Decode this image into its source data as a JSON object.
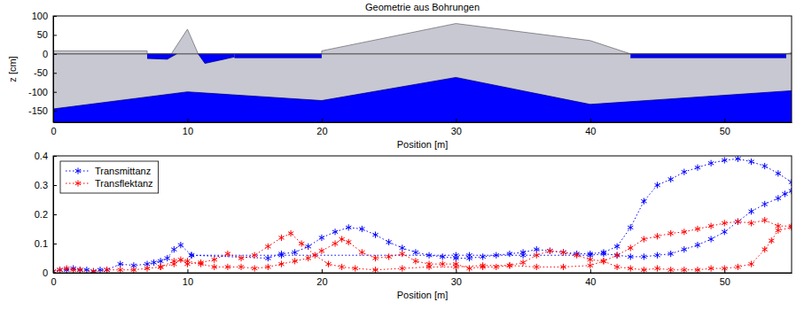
{
  "chart_data": [
    {
      "type": "area",
      "title": "Geometrie aus Bohrungen",
      "x_label": "Position [m]",
      "y_label": "z [cm]",
      "xlim": [
        0,
        55
      ],
      "ylim": [
        -180,
        100
      ],
      "xticks": [
        0,
        10,
        20,
        30,
        40,
        50
      ],
      "yticks": [
        -150,
        -100,
        -50,
        0,
        50,
        100
      ],
      "grid": false,
      "series": [
        {
          "type": "area",
          "color": "#c8c8d2",
          "x": [
            0,
            7,
            7,
            8.8,
            10,
            10.8,
            20,
            20,
            30,
            40,
            43,
            54.6,
            55
          ],
          "values": [
            8,
            8,
            0,
            0,
            65,
            0,
            0,
            8,
            80,
            35,
            0,
            0,
            3
          ]
        },
        {
          "type": "area",
          "color": "#0000ff",
          "x": [
            7,
            8.5,
            9.2
          ],
          "values": [
            -12,
            -14,
            0
          ],
          "base": [
            0,
            0,
            0
          ]
        },
        {
          "type": "area",
          "color": "#0000ff",
          "x": [
            10.8,
            11.3,
            13.5
          ],
          "values": [
            0,
            -25,
            -8
          ],
          "base": [
            0,
            0,
            0
          ]
        },
        {
          "type": "area",
          "color": "#0000ff",
          "x": [
            13.5,
            20
          ],
          "values": [
            -10,
            -10
          ],
          "base": [
            0,
            0
          ]
        },
        {
          "type": "area",
          "color": "#0000ff",
          "x": [
            43,
            54.6
          ],
          "values": [
            -10,
            -10
          ],
          "base": [
            0,
            0
          ]
        },
        {
          "type": "area",
          "color": "#0000ff",
          "x": [
            0,
            10,
            20,
            30,
            40,
            55
          ],
          "values": [
            -145,
            -100,
            -123,
            -62,
            -133,
            -97
          ]
        },
        {
          "type": "line",
          "color": "#404040",
          "line_style": "solid",
          "x": [
            0,
            55
          ],
          "values": [
            0,
            0
          ]
        }
      ]
    },
    {
      "type": "line",
      "x_label": "Position [m]",
      "xlim": [
        0,
        55
      ],
      "ylim": [
        0,
        0.4
      ],
      "xticks": [
        0,
        10,
        20,
        30,
        40,
        50
      ],
      "yticks": [
        0,
        0.1,
        0.2,
        0.3,
        0.4
      ],
      "grid": false,
      "legend": "upper left",
      "series": [
        {
          "name": "Transmittanz",
          "color": "#0000ff",
          "marker": "asterisk",
          "line_style": "dotted",
          "x": [
            0,
            0.5,
            1,
            1.5,
            2,
            2.5,
            3,
            3.5,
            4,
            5,
            6,
            7,
            7.5,
            8,
            8.5,
            9,
            9.5,
            10.3,
            16,
            17,
            18,
            19,
            20,
            21,
            22,
            23,
            24,
            25,
            26,
            27,
            28,
            29,
            30,
            31,
            32,
            33,
            34,
            35,
            36,
            37,
            38,
            39,
            40,
            41,
            42,
            43,
            44,
            45,
            46,
            47,
            48,
            49,
            50,
            51,
            52,
            53,
            54,
            55,
            55,
            54.5,
            54,
            53,
            52,
            51,
            50,
            49,
            48,
            47,
            46,
            45,
            44,
            43,
            42,
            41,
            40,
            35,
            31,
            30,
            17,
            10.3
          ],
          "values": [
            0.005,
            0.01,
            0.01,
            0.015,
            0.01,
            0.01,
            0.005,
            0.01,
            0.01,
            0.03,
            0.025,
            0.03,
            0.035,
            0.04,
            0.05,
            0.08,
            0.095,
            0.06,
            0.05,
            0.065,
            0.07,
            0.09,
            0.12,
            0.14,
            0.155,
            0.15,
            0.13,
            0.105,
            0.085,
            0.07,
            0.06,
            0.055,
            0.05,
            0.05,
            0.055,
            0.06,
            0.065,
            0.07,
            0.08,
            0.075,
            0.07,
            0.065,
            0.065,
            0.07,
            0.09,
            0.155,
            0.245,
            0.3,
            0.32,
            0.345,
            0.36,
            0.375,
            0.385,
            0.39,
            0.38,
            0.365,
            0.34,
            0.31,
            0.28,
            0.27,
            0.255,
            0.235,
            0.21,
            0.175,
            0.14,
            0.115,
            0.095,
            0.08,
            0.065,
            0.06,
            0.055,
            0.055,
            0.06,
            0.065,
            0.06,
            0.06,
            0.06,
            0.06,
            0.06,
            0.06
          ]
        },
        {
          "name": "Transflektanz",
          "color": "#ff0000",
          "marker": "asterisk",
          "line_style": "dotted",
          "x": [
            0,
            0.5,
            1,
            1.5,
            2,
            3,
            4,
            5,
            6,
            7,
            8,
            9,
            9.5,
            10,
            11,
            12,
            13,
            14,
            15,
            16,
            17,
            17.7,
            18.5,
            19.5,
            20.5,
            21.5,
            22.5,
            24,
            26,
            28,
            30,
            32,
            34,
            36,
            38,
            40,
            41,
            42,
            43,
            44,
            45,
            46,
            47,
            48,
            49,
            50,
            51,
            52,
            53,
            54,
            55,
            55,
            54,
            53.5,
            53,
            52,
            51,
            50,
            49,
            48,
            47,
            46,
            45,
            44,
            43,
            42,
            41,
            40,
            39,
            38,
            37,
            36,
            35,
            34,
            33,
            32,
            31,
            30,
            29,
            28,
            27,
            26,
            25,
            24,
            23,
            22,
            21.5,
            21,
            20,
            19,
            18,
            17,
            16,
            15,
            14,
            13,
            12,
            11,
            10,
            9,
            8
          ],
          "values": [
            0.005,
            0.01,
            0.015,
            0.01,
            0.01,
            0.005,
            0.01,
            0.01,
            0.01,
            0.015,
            0.02,
            0.03,
            0.045,
            0.03,
            0.035,
            0.045,
            0.065,
            0.05,
            0.06,
            0.09,
            0.12,
            0.135,
            0.1,
            0.06,
            0.03,
            0.02,
            0.015,
            0.01,
            0.015,
            0.02,
            0.02,
            0.025,
            0.025,
            0.02,
            0.02,
            0.025,
            0.04,
            0.06,
            0.085,
            0.115,
            0.125,
            0.135,
            0.14,
            0.15,
            0.16,
            0.17,
            0.175,
            0.17,
            0.18,
            0.16,
            0.16,
            0.155,
            0.145,
            0.11,
            0.08,
            0.03,
            0.02,
            0.015,
            0.015,
            0.01,
            0.01,
            0.01,
            0.015,
            0.01,
            0.015,
            0.02,
            0.04,
            0.045,
            0.06,
            0.07,
            0.075,
            0.06,
            0.035,
            0.025,
            0.02,
            0.02,
            0.015,
            0.03,
            0.03,
            0.03,
            0.04,
            0.065,
            0.055,
            0.05,
            0.07,
            0.105,
            0.115,
            0.1,
            0.075,
            0.05,
            0.04,
            0.03,
            0.02,
            0.015,
            0.02,
            0.02,
            0.02,
            0.03,
            0.04,
            0.04,
            0.02
          ]
        }
      ]
    }
  ]
}
